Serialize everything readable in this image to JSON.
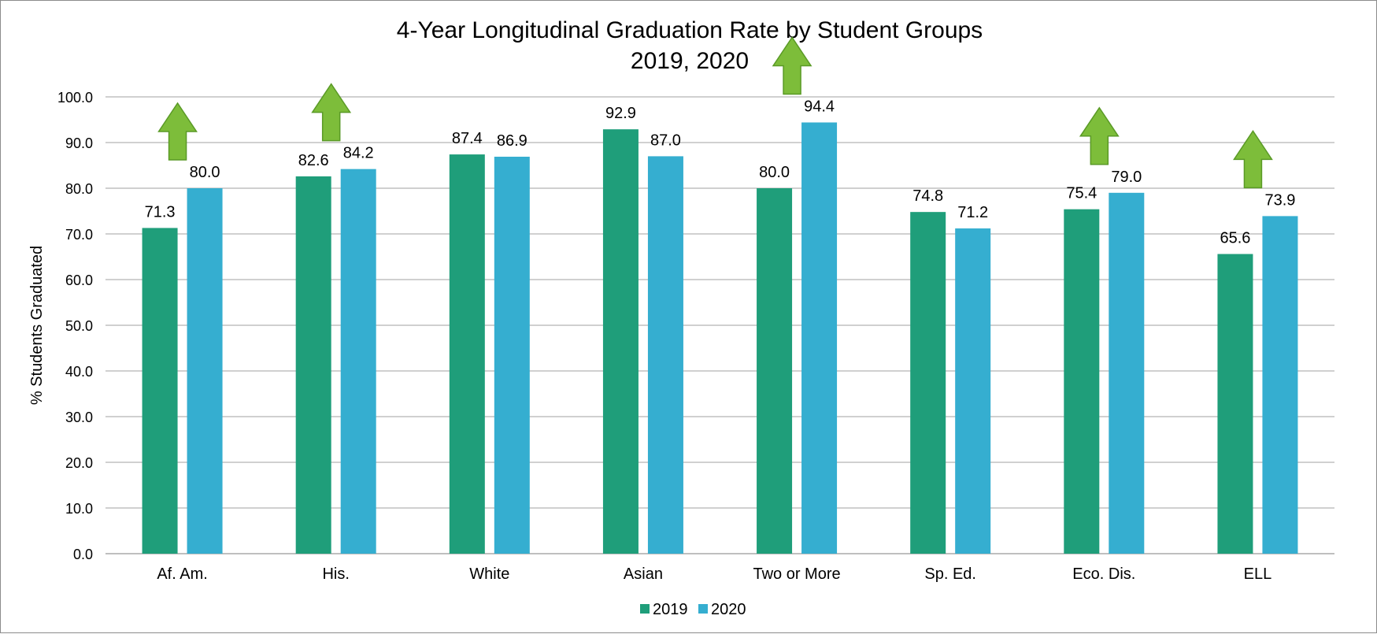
{
  "chart_data": {
    "type": "bar",
    "title": "4-Year Longitudinal Graduation Rate by Student Groups",
    "subtitle": "2019, 2020",
    "ylabel": "% Students Graduated",
    "xlabel": "",
    "ylim": [
      0,
      100
    ],
    "y_ticks": [
      "0.0",
      "10.0",
      "20.0",
      "30.0",
      "40.0",
      "50.0",
      "60.0",
      "70.0",
      "80.0",
      "90.0",
      "100.0"
    ],
    "grid": true,
    "legend_position": "bottom",
    "categories": [
      "Af. Am.",
      "His.",
      "White",
      "Asian",
      "Two or More",
      "Sp. Ed.",
      "Eco. Dis.",
      "ELL"
    ],
    "series": [
      {
        "name": "2019",
        "color": "#1f9e7a",
        "values": [
          71.3,
          82.6,
          87.4,
          92.9,
          80.0,
          74.8,
          75.4,
          65.6
        ],
        "labels": [
          "71.3",
          "82.6",
          "87.4",
          "92.9",
          "80.0",
          "74.8",
          "75.4",
          "65.6"
        ]
      },
      {
        "name": "2020",
        "color": "#35aed0",
        "values": [
          80.0,
          84.2,
          86.9,
          87.0,
          94.4,
          71.2,
          79.0,
          73.9
        ],
        "labels": [
          "80.0",
          "84.2",
          "86.9",
          "87.0",
          "94.4",
          "71.2",
          "79.0",
          "73.9"
        ]
      }
    ],
    "annotations": {
      "icon": "up-arrow-icon",
      "color": "#7dbd3a",
      "outline": "#5a9a26",
      "categories": [
        "Af. Am.",
        "His.",
        "Two or More",
        "Eco. Dis.",
        "ELL"
      ]
    }
  }
}
